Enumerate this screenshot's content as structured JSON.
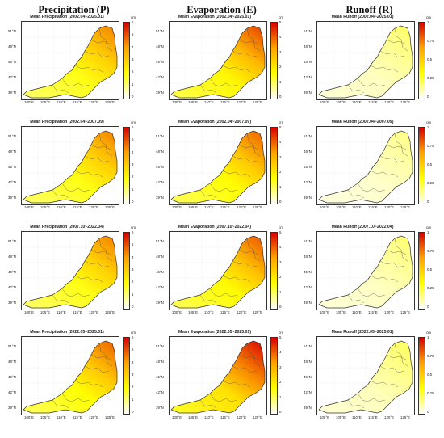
{
  "columns": [
    {
      "title": "Precipitation (P)",
      "scale": "precip"
    },
    {
      "title": "Evaporation (E)",
      "scale": "evap"
    },
    {
      "title": "Runoff (R)",
      "scale": "runoff"
    }
  ],
  "unit": "cm",
  "lat_labels": [
    "51°N",
    "48°N",
    "45°N",
    "42°N",
    "39°N"
  ],
  "lon_labels": [
    "100°E",
    "105°E",
    "110°E",
    "115°E",
    "120°E",
    "125°E"
  ],
  "scales": {
    "precip": {
      "ticks": [
        "6",
        "5",
        "4",
        "3",
        "2",
        "1",
        "0"
      ],
      "max": 6
    },
    "evap": {
      "ticks": [
        "5",
        "4",
        "3",
        "2",
        "1",
        "0"
      ],
      "max": 5
    },
    "runoff": {
      "ticks": [
        "1",
        "0.75",
        "0.5",
        "0.25",
        "0"
      ],
      "max": 1
    }
  },
  "panels": [
    {
      "title": "Mean Precipitation (2002.04~2025.01)",
      "level": 0.55
    },
    {
      "title": "Mean Evaporation (2002.04~2025.01)",
      "level": 0.65
    },
    {
      "title": "Mean Runoff (2002.04~2025.01)",
      "level": 0.15
    },
    {
      "title": "Mean Precipitation (2002.04~2007.09)",
      "level": 0.55
    },
    {
      "title": "Mean Evaporation (2002.04~2007.09)",
      "level": 0.6
    },
    {
      "title": "Mean Runoff (2002.04~2007.09)",
      "level": 0.12
    },
    {
      "title": "Mean Precipitation (2007.10~2022.04)",
      "level": 0.55
    },
    {
      "title": "Mean Evaporation (2007.10~2022.04)",
      "level": 0.62
    },
    {
      "title": "Mean Runoff (2007.10~2022.04)",
      "level": 0.14
    },
    {
      "title": "Mean Precipitation (2022.05~2025.01)",
      "level": 0.6
    },
    {
      "title": "Mean Evaporation (2022.05~2025.01)",
      "level": 0.8
    },
    {
      "title": "Mean Runoff (2022.05~2025.01)",
      "level": 0.16
    }
  ]
}
